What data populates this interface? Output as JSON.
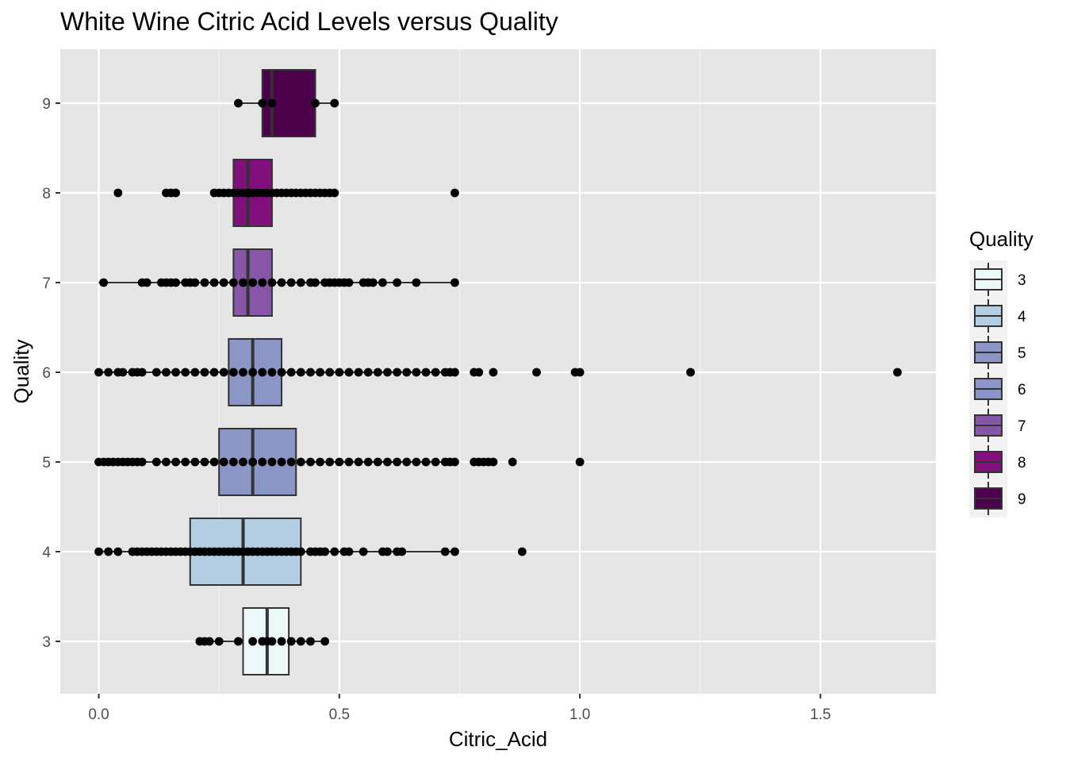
{
  "chart_data": {
    "type": "boxplot",
    "orientation": "horizontal",
    "title": "White Wine Citric Acid Levels versus Quality",
    "xlabel": "Citric_Acid",
    "ylabel": "Quality",
    "xlim": [
      -0.08,
      1.74
    ],
    "x_ticks": [
      0.0,
      0.5,
      1.0,
      1.5
    ],
    "x_tick_labels": [
      "0.0",
      "0.5",
      "1.0",
      "1.5"
    ],
    "categories": [
      "3",
      "4",
      "5",
      "6",
      "7",
      "8",
      "9"
    ],
    "grid": true,
    "background_color": "#e5e5e5",
    "legend": {
      "title": "Quality",
      "placement": "right",
      "items": [
        "3",
        "4",
        "5",
        "6",
        "7",
        "8",
        "9"
      ]
    },
    "series": [
      {
        "quality": "3",
        "color": "#edf8fb",
        "whisker_low": 0.21,
        "q1": 0.3,
        "median": 0.35,
        "q3": 0.395,
        "whisker_high": 0.47,
        "points": [
          0.21,
          0.22,
          0.23,
          0.25,
          0.29,
          0.32,
          0.34,
          0.35,
          0.36,
          0.38,
          0.4,
          0.42,
          0.44,
          0.47
        ]
      },
      {
        "quality": "4",
        "color": "#b3cde3",
        "whisker_low": 0.0,
        "q1": 0.19,
        "median": 0.3,
        "q3": 0.42,
        "whisker_high": 0.74,
        "points": [
          0.0,
          0.02,
          0.04,
          0.07,
          0.08,
          0.09,
          0.1,
          0.11,
          0.12,
          0.13,
          0.14,
          0.15,
          0.16,
          0.17,
          0.18,
          0.19,
          0.2,
          0.21,
          0.22,
          0.23,
          0.24,
          0.25,
          0.26,
          0.27,
          0.28,
          0.29,
          0.3,
          0.31,
          0.32,
          0.33,
          0.34,
          0.35,
          0.36,
          0.37,
          0.38,
          0.39,
          0.4,
          0.41,
          0.42,
          0.44,
          0.45,
          0.46,
          0.47,
          0.49,
          0.51,
          0.52,
          0.55,
          0.59,
          0.6,
          0.62,
          0.63,
          0.72,
          0.74,
          0.88
        ]
      },
      {
        "quality": "5",
        "color": "#8c96c6",
        "whisker_low": 0.0,
        "q1": 0.25,
        "median": 0.32,
        "q3": 0.41,
        "whisker_high": 0.74,
        "points": [
          0.0,
          0.01,
          0.02,
          0.03,
          0.04,
          0.05,
          0.06,
          0.07,
          0.08,
          0.09,
          0.12,
          0.14,
          0.16,
          0.18,
          0.2,
          0.22,
          0.24,
          0.26,
          0.28,
          0.3,
          0.32,
          0.34,
          0.36,
          0.38,
          0.4,
          0.42,
          0.44,
          0.46,
          0.48,
          0.5,
          0.52,
          0.54,
          0.56,
          0.58,
          0.6,
          0.62,
          0.64,
          0.66,
          0.68,
          0.7,
          0.72,
          0.73,
          0.74,
          0.78,
          0.79,
          0.8,
          0.81,
          0.82,
          0.86,
          1.0
        ]
      },
      {
        "quality": "6",
        "color": "#8c96c6",
        "whisker_low": 0.0,
        "q1": 0.27,
        "median": 0.32,
        "q3": 0.38,
        "whisker_high": 0.74,
        "points": [
          0.0,
          0.02,
          0.04,
          0.05,
          0.07,
          0.08,
          0.09,
          0.12,
          0.14,
          0.16,
          0.18,
          0.2,
          0.22,
          0.24,
          0.26,
          0.28,
          0.3,
          0.32,
          0.34,
          0.36,
          0.38,
          0.4,
          0.42,
          0.44,
          0.46,
          0.48,
          0.5,
          0.52,
          0.54,
          0.56,
          0.58,
          0.6,
          0.62,
          0.64,
          0.66,
          0.68,
          0.7,
          0.72,
          0.73,
          0.74,
          0.78,
          0.79,
          0.82,
          0.91,
          0.99,
          1.0,
          1.23,
          1.66
        ]
      },
      {
        "quality": "7",
        "color": "#8856a7",
        "whisker_low": 0.0,
        "q1": 0.28,
        "median": 0.31,
        "q3": 0.36,
        "whisker_high": 0.74,
        "points": [
          0.01,
          0.09,
          0.1,
          0.13,
          0.14,
          0.15,
          0.16,
          0.18,
          0.19,
          0.2,
          0.22,
          0.24,
          0.26,
          0.28,
          0.3,
          0.32,
          0.34,
          0.36,
          0.38,
          0.4,
          0.42,
          0.44,
          0.45,
          0.47,
          0.48,
          0.49,
          0.5,
          0.51,
          0.52,
          0.55,
          0.56,
          0.57,
          0.59,
          0.62,
          0.66,
          0.74
        ]
      },
      {
        "quality": "8",
        "color": "#810f7c",
        "whisker_low": 0.24,
        "q1": 0.28,
        "median": 0.31,
        "q3": 0.36,
        "whisker_high": 0.49,
        "points": [
          0.04,
          0.14,
          0.15,
          0.16,
          0.24,
          0.25,
          0.26,
          0.27,
          0.28,
          0.29,
          0.3,
          0.31,
          0.32,
          0.33,
          0.34,
          0.35,
          0.36,
          0.37,
          0.38,
          0.39,
          0.4,
          0.41,
          0.42,
          0.43,
          0.44,
          0.45,
          0.46,
          0.47,
          0.48,
          0.49,
          0.74
        ]
      },
      {
        "quality": "9",
        "color": "#4d004b",
        "whisker_low": 0.29,
        "q1": 0.34,
        "median": 0.36,
        "q3": 0.45,
        "whisker_high": 0.49,
        "points": [
          0.29,
          0.34,
          0.36,
          0.45,
          0.49
        ]
      }
    ]
  }
}
